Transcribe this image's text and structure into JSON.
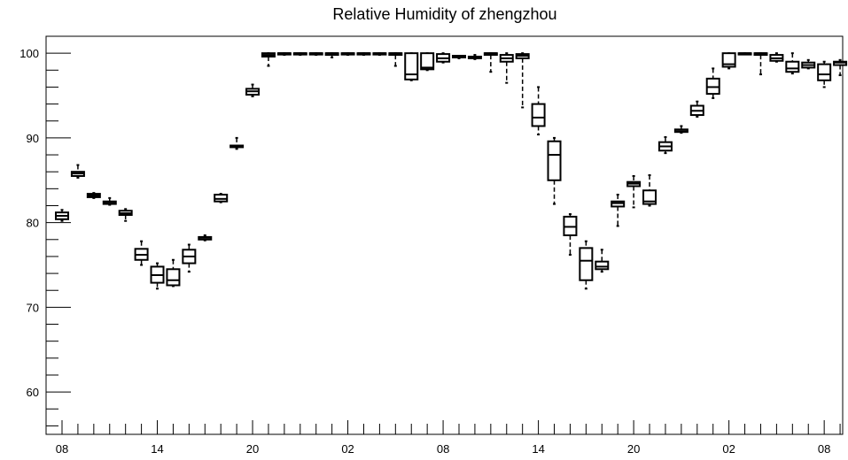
{
  "chart_data": {
    "type": "box",
    "title": "Relative Humidity of zhengzhou",
    "xlabel": "",
    "ylabel": "",
    "ylim": [
      55,
      102
    ],
    "y_ticks": [
      60,
      70,
      80,
      90,
      100
    ],
    "x_tick_labels": [
      "08",
      "14",
      "20",
      "02",
      "08",
      "14",
      "20",
      "02",
      "08"
    ],
    "x_hours_per_label": 6,
    "series_color": "#000000",
    "boxes": [
      {
        "hour": 0,
        "min": 80.2,
        "q1": 80.4,
        "median": 80.8,
        "q3": 81.2,
        "max": 81.5
      },
      {
        "hour": 1,
        "min": 85.3,
        "q1": 85.5,
        "median": 85.8,
        "q3": 86.0,
        "max": 86.8
      },
      {
        "hour": 2,
        "min": 82.9,
        "q1": 83.0,
        "median": 83.2,
        "q3": 83.4,
        "max": 83.5
      },
      {
        "hour": 3,
        "min": 82.1,
        "q1": 82.2,
        "median": 82.4,
        "q3": 82.5,
        "max": 82.9
      },
      {
        "hour": 4,
        "min": 80.2,
        "q1": 80.9,
        "median": 81.1,
        "q3": 81.4,
        "max": 81.6
      },
      {
        "hour": 5,
        "min": 75.0,
        "q1": 75.6,
        "median": 76.2,
        "q3": 76.9,
        "max": 77.8
      },
      {
        "hour": 6,
        "min": 72.2,
        "q1": 72.9,
        "median": 73.8,
        "q3": 74.8,
        "max": 75.2
      },
      {
        "hour": 7,
        "min": 72.5,
        "q1": 72.6,
        "median": 73.2,
        "q3": 74.5,
        "max": 75.6
      },
      {
        "hour": 8,
        "min": 74.2,
        "q1": 75.2,
        "median": 76.0,
        "q3": 76.8,
        "max": 77.4
      },
      {
        "hour": 9,
        "min": 77.9,
        "q1": 78.0,
        "median": 78.2,
        "q3": 78.3,
        "max": 78.5
      },
      {
        "hour": 10,
        "min": 82.4,
        "q1": 82.5,
        "median": 82.8,
        "q3": 83.3,
        "max": 83.4
      },
      {
        "hour": 11,
        "min": 88.7,
        "q1": 88.9,
        "median": 89.0,
        "q3": 89.1,
        "max": 90.0
      },
      {
        "hour": 12,
        "min": 94.9,
        "q1": 95.1,
        "median": 95.5,
        "q3": 95.8,
        "max": 96.3
      },
      {
        "hour": 13,
        "min": 98.5,
        "q1": 99.6,
        "median": 99.8,
        "q3": 100.0,
        "max": 100.0
      },
      {
        "hour": 14,
        "min": 99.8,
        "q1": 99.9,
        "median": 100.0,
        "q3": 100.0,
        "max": 100.0
      },
      {
        "hour": 15,
        "min": 99.8,
        "q1": 99.9,
        "median": 100.0,
        "q3": 100.0,
        "max": 100.0
      },
      {
        "hour": 16,
        "min": 99.8,
        "q1": 99.9,
        "median": 100.0,
        "q3": 100.0,
        "max": 100.0
      },
      {
        "hour": 17,
        "min": 99.5,
        "q1": 99.8,
        "median": 100.0,
        "q3": 100.0,
        "max": 100.0
      },
      {
        "hour": 18,
        "min": 99.8,
        "q1": 99.9,
        "median": 100.0,
        "q3": 100.0,
        "max": 100.0
      },
      {
        "hour": 19,
        "min": 99.8,
        "q1": 99.9,
        "median": 100.0,
        "q3": 100.0,
        "max": 100.0
      },
      {
        "hour": 20,
        "min": 99.8,
        "q1": 99.9,
        "median": 100.0,
        "q3": 100.0,
        "max": 100.0
      },
      {
        "hour": 21,
        "min": 98.5,
        "q1": 99.8,
        "median": 100.0,
        "q3": 100.0,
        "max": 100.0
      },
      {
        "hour": 22,
        "min": 96.8,
        "q1": 96.9,
        "median": 97.5,
        "q3": 100.0,
        "max": 100.0
      },
      {
        "hour": 23,
        "min": 98.0,
        "q1": 98.1,
        "median": 98.3,
        "q3": 100.0,
        "max": 100.0
      },
      {
        "hour": 24,
        "min": 98.9,
        "q1": 99.0,
        "median": 99.4,
        "q3": 99.9,
        "max": 100.0
      },
      {
        "hour": 25,
        "min": 99.4,
        "q1": 99.5,
        "median": 99.6,
        "q3": 99.7,
        "max": 99.7
      },
      {
        "hour": 26,
        "min": 99.3,
        "q1": 99.4,
        "median": 99.5,
        "q3": 99.6,
        "max": 99.8
      },
      {
        "hour": 27,
        "min": 97.8,
        "q1": 99.8,
        "median": 100.0,
        "q3": 100.0,
        "max": 100.0
      },
      {
        "hour": 28,
        "min": 96.5,
        "q1": 99.0,
        "median": 99.4,
        "q3": 99.8,
        "max": 100.0
      },
      {
        "hour": 29,
        "min": 93.6,
        "q1": 99.4,
        "median": 99.7,
        "q3": 99.9,
        "max": 100.0
      },
      {
        "hour": 30,
        "min": 90.4,
        "q1": 91.4,
        "median": 92.4,
        "q3": 94.0,
        "max": 96.0
      },
      {
        "hour": 31,
        "min": 82.2,
        "q1": 85.0,
        "median": 88.0,
        "q3": 89.6,
        "max": 90.0
      },
      {
        "hour": 32,
        "min": 76.2,
        "q1": 78.5,
        "median": 79.5,
        "q3": 80.7,
        "max": 81.0
      },
      {
        "hour": 33,
        "min": 72.2,
        "q1": 73.2,
        "median": 75.5,
        "q3": 77.0,
        "max": 77.8
      },
      {
        "hour": 34,
        "min": 74.2,
        "q1": 74.5,
        "median": 74.8,
        "q3": 75.4,
        "max": 76.8
      },
      {
        "hour": 35,
        "min": 79.6,
        "q1": 81.9,
        "median": 82.3,
        "q3": 82.5,
        "max": 83.3
      },
      {
        "hour": 36,
        "min": 81.8,
        "q1": 84.3,
        "median": 84.6,
        "q3": 84.8,
        "max": 85.5
      },
      {
        "hour": 37,
        "min": 82.0,
        "q1": 82.2,
        "median": 82.5,
        "q3": 83.8,
        "max": 85.6
      },
      {
        "hour": 38,
        "min": 88.2,
        "q1": 88.5,
        "median": 89.0,
        "q3": 89.5,
        "max": 90.1
      },
      {
        "hour": 39,
        "min": 90.6,
        "q1": 90.7,
        "median": 90.8,
        "q3": 91.0,
        "max": 91.4
      },
      {
        "hour": 40,
        "min": 92.5,
        "q1": 92.7,
        "median": 93.2,
        "q3": 93.8,
        "max": 94.3
      },
      {
        "hour": 41,
        "min": 94.7,
        "q1": 95.2,
        "median": 96.0,
        "q3": 97.0,
        "max": 98.2
      },
      {
        "hour": 42,
        "min": 98.2,
        "q1": 98.4,
        "median": 98.7,
        "q3": 100.0,
        "max": 100.0
      },
      {
        "hour": 43,
        "min": 99.9,
        "q1": 99.9,
        "median": 100.0,
        "q3": 100.0,
        "max": 100.0
      },
      {
        "hour": 44,
        "min": 97.5,
        "q1": 99.8,
        "median": 100.0,
        "q3": 100.0,
        "max": 100.0
      },
      {
        "hour": 45,
        "min": 99.0,
        "q1": 99.1,
        "median": 99.4,
        "q3": 99.8,
        "max": 100.0
      },
      {
        "hour": 46,
        "min": 97.6,
        "q1": 97.8,
        "median": 98.2,
        "q3": 99.0,
        "max": 100.0
      },
      {
        "hour": 47,
        "min": 98.2,
        "q1": 98.3,
        "median": 98.6,
        "q3": 98.9,
        "max": 99.2
      },
      {
        "hour": 48,
        "min": 96.0,
        "q1": 96.8,
        "median": 97.5,
        "q3": 98.7,
        "max": 99.0
      },
      {
        "hour": 49,
        "min": 97.4,
        "q1": 98.6,
        "median": 98.9,
        "q3": 99.0,
        "max": 99.2
      }
    ]
  }
}
